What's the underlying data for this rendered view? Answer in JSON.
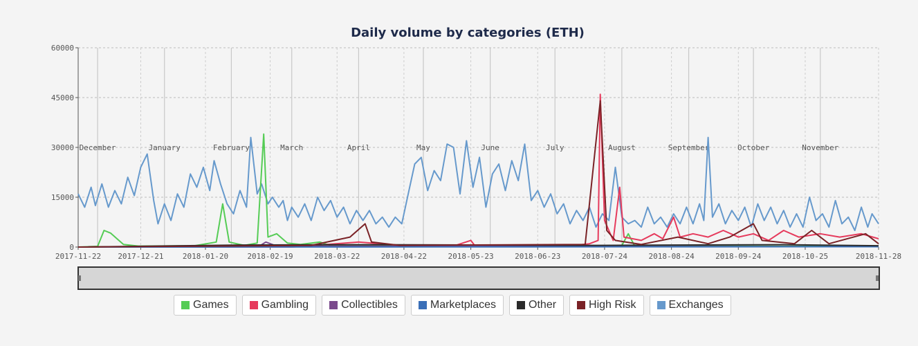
{
  "chart_data": {
    "type": "line",
    "title": "Daily volume by categories (ETH)",
    "xlabel": "",
    "ylabel": "",
    "ylim": [
      0,
      60000
    ],
    "y_ticks": [
      "0",
      "15000",
      "30000",
      "45000",
      "60000"
    ],
    "x_ticks": [
      "2017-11-22",
      "2017-12-21",
      "2018-01-20",
      "2018-02-19",
      "2018-03-22",
      "2018-04-22",
      "2018-05-23",
      "2018-06-23",
      "2018-07-24",
      "2018-08-24",
      "2018-09-24",
      "2018-10-25",
      "2018-11-28"
    ],
    "month_labels": [
      "December",
      "January",
      "February",
      "March",
      "April",
      "May",
      "June",
      "July",
      "August",
      "September",
      "October",
      "November"
    ],
    "grid": true,
    "legend_position": "bottom",
    "x_start": "2017-11-22",
    "x_end": "2018-11-28",
    "series": [
      {
        "name": "Exchanges",
        "color": "#6699cc",
        "points": [
          [
            "2017-11-22",
            16000
          ],
          [
            "2017-11-25",
            12000
          ],
          [
            "2017-11-28",
            18000
          ],
          [
            "2017-11-30",
            12500
          ],
          [
            "2017-12-03",
            19000
          ],
          [
            "2017-12-06",
            12000
          ],
          [
            "2017-12-09",
            17000
          ],
          [
            "2017-12-12",
            13000
          ],
          [
            "2017-12-15",
            21000
          ],
          [
            "2017-12-18",
            15500
          ],
          [
            "2017-12-21",
            24000
          ],
          [
            "2017-12-24",
            28000
          ],
          [
            "2017-12-27",
            14000
          ],
          [
            "2017-12-29",
            7000
          ],
          [
            "2018-01-01",
            13000
          ],
          [
            "2018-01-04",
            8000
          ],
          [
            "2018-01-07",
            16000
          ],
          [
            "2018-01-10",
            12000
          ],
          [
            "2018-01-13",
            22000
          ],
          [
            "2018-01-16",
            18000
          ],
          [
            "2018-01-19",
            24000
          ],
          [
            "2018-01-22",
            17000
          ],
          [
            "2018-01-24",
            26000
          ],
          [
            "2018-01-27",
            19000
          ],
          [
            "2018-01-30",
            13000
          ],
          [
            "2018-02-02",
            10000
          ],
          [
            "2018-02-05",
            17000
          ],
          [
            "2018-02-08",
            12000
          ],
          [
            "2018-02-10",
            33000
          ],
          [
            "2018-02-13",
            16000
          ],
          [
            "2018-02-15",
            19000
          ],
          [
            "2018-02-18",
            13000
          ],
          [
            "2018-02-20",
            15000
          ],
          [
            "2018-02-23",
            12000
          ],
          [
            "2018-02-25",
            14000
          ],
          [
            "2018-02-27",
            8000
          ],
          [
            "2018-03-01",
            12000
          ],
          [
            "2018-03-04",
            9000
          ],
          [
            "2018-03-07",
            13000
          ],
          [
            "2018-03-10",
            8000
          ],
          [
            "2018-03-13",
            15000
          ],
          [
            "2018-03-16",
            11000
          ],
          [
            "2018-03-19",
            14000
          ],
          [
            "2018-03-22",
            9000
          ],
          [
            "2018-03-25",
            12000
          ],
          [
            "2018-03-28",
            7000
          ],
          [
            "2018-03-31",
            11000
          ],
          [
            "2018-04-03",
            8000
          ],
          [
            "2018-04-06",
            11000
          ],
          [
            "2018-04-09",
            7000
          ],
          [
            "2018-04-12",
            9000
          ],
          [
            "2018-04-15",
            6000
          ],
          [
            "2018-04-18",
            9000
          ],
          [
            "2018-04-21",
            7000
          ],
          [
            "2018-04-24",
            16000
          ],
          [
            "2018-04-27",
            25000
          ],
          [
            "2018-04-30",
            27000
          ],
          [
            "2018-05-03",
            17000
          ],
          [
            "2018-05-06",
            23000
          ],
          [
            "2018-05-09",
            20000
          ],
          [
            "2018-05-12",
            31000
          ],
          [
            "2018-05-15",
            30000
          ],
          [
            "2018-05-18",
            16000
          ],
          [
            "2018-05-21",
            32000
          ],
          [
            "2018-05-24",
            18000
          ],
          [
            "2018-05-27",
            27000
          ],
          [
            "2018-05-30",
            12000
          ],
          [
            "2018-06-02",
            22000
          ],
          [
            "2018-06-05",
            25000
          ],
          [
            "2018-06-08",
            17000
          ],
          [
            "2018-06-11",
            26000
          ],
          [
            "2018-06-14",
            20000
          ],
          [
            "2018-06-17",
            31000
          ],
          [
            "2018-06-20",
            14000
          ],
          [
            "2018-06-23",
            17000
          ],
          [
            "2018-06-26",
            12000
          ],
          [
            "2018-06-29",
            16000
          ],
          [
            "2018-07-02",
            10000
          ],
          [
            "2018-07-05",
            13000
          ],
          [
            "2018-07-08",
            7000
          ],
          [
            "2018-07-11",
            11000
          ],
          [
            "2018-07-14",
            8000
          ],
          [
            "2018-07-17",
            12000
          ],
          [
            "2018-07-20",
            6000
          ],
          [
            "2018-07-23",
            10000
          ],
          [
            "2018-07-26",
            8000
          ],
          [
            "2018-07-29",
            24000
          ],
          [
            "2018-08-01",
            9000
          ],
          [
            "2018-08-04",
            7000
          ],
          [
            "2018-08-07",
            8000
          ],
          [
            "2018-08-10",
            6000
          ],
          [
            "2018-08-13",
            12000
          ],
          [
            "2018-08-16",
            7000
          ],
          [
            "2018-08-19",
            9000
          ],
          [
            "2018-08-22",
            6000
          ],
          [
            "2018-08-25",
            10000
          ],
          [
            "2018-08-28",
            7000
          ],
          [
            "2018-08-31",
            12000
          ],
          [
            "2018-09-03",
            7000
          ],
          [
            "2018-09-06",
            13000
          ],
          [
            "2018-09-08",
            8000
          ],
          [
            "2018-09-10",
            33000
          ],
          [
            "2018-09-12",
            9000
          ],
          [
            "2018-09-15",
            13000
          ],
          [
            "2018-09-18",
            7000
          ],
          [
            "2018-09-21",
            11000
          ],
          [
            "2018-09-24",
            8000
          ],
          [
            "2018-09-27",
            12000
          ],
          [
            "2018-09-30",
            6000
          ],
          [
            "2018-10-03",
            13000
          ],
          [
            "2018-10-06",
            8000
          ],
          [
            "2018-10-09",
            12000
          ],
          [
            "2018-10-12",
            7000
          ],
          [
            "2018-10-15",
            11000
          ],
          [
            "2018-10-18",
            6000
          ],
          [
            "2018-10-21",
            10000
          ],
          [
            "2018-10-24",
            6000
          ],
          [
            "2018-10-27",
            15000
          ],
          [
            "2018-10-30",
            8000
          ],
          [
            "2018-11-02",
            10000
          ],
          [
            "2018-11-05",
            6000
          ],
          [
            "2018-11-08",
            14000
          ],
          [
            "2018-11-11",
            7000
          ],
          [
            "2018-11-14",
            9000
          ],
          [
            "2018-11-17",
            5000
          ],
          [
            "2018-11-20",
            12000
          ],
          [
            "2018-11-23",
            6000
          ],
          [
            "2018-11-25",
            10000
          ],
          [
            "2018-11-28",
            7000
          ]
        ]
      },
      {
        "name": "Games",
        "color": "#55cc55",
        "points": [
          [
            "2017-11-22",
            0
          ],
          [
            "2017-12-01",
            200
          ],
          [
            "2017-12-04",
            5000
          ],
          [
            "2017-12-07",
            4200
          ],
          [
            "2017-12-10",
            2500
          ],
          [
            "2017-12-13",
            800
          ],
          [
            "2017-12-20",
            300
          ],
          [
            "2018-01-15",
            400
          ],
          [
            "2018-01-25",
            1500
          ],
          [
            "2018-01-28",
            13000
          ],
          [
            "2018-01-31",
            1500
          ],
          [
            "2018-02-07",
            500
          ],
          [
            "2018-02-13",
            1200
          ],
          [
            "2018-02-16",
            34000
          ],
          [
            "2018-02-18",
            3000
          ],
          [
            "2018-02-22",
            4000
          ],
          [
            "2018-02-27",
            1200
          ],
          [
            "2018-03-05",
            800
          ],
          [
            "2018-03-14",
            1500
          ],
          [
            "2018-03-20",
            300
          ],
          [
            "2018-05-01",
            300
          ],
          [
            "2018-07-20",
            200
          ],
          [
            "2018-08-01",
            500
          ],
          [
            "2018-08-04",
            4000
          ],
          [
            "2018-08-07",
            300
          ],
          [
            "2018-09-20",
            300
          ],
          [
            "2018-10-20",
            200
          ],
          [
            "2018-11-28",
            200
          ]
        ]
      },
      {
        "name": "Gambling",
        "color": "#e63a5c",
        "points": [
          [
            "2017-11-22",
            0
          ],
          [
            "2018-03-01",
            0
          ],
          [
            "2018-04-01",
            1500
          ],
          [
            "2018-04-20",
            500
          ],
          [
            "2018-05-15",
            300
          ],
          [
            "2018-05-23",
            2000
          ],
          [
            "2018-05-25",
            300
          ],
          [
            "2018-06-20",
            400
          ],
          [
            "2018-07-10",
            500
          ],
          [
            "2018-07-17",
            1000
          ],
          [
            "2018-07-21",
            2000
          ],
          [
            "2018-07-22",
            46000
          ],
          [
            "2018-07-24",
            8000
          ],
          [
            "2018-07-28",
            2000
          ],
          [
            "2018-07-31",
            18000
          ],
          [
            "2018-08-02",
            3000
          ],
          [
            "2018-08-10",
            2000
          ],
          [
            "2018-08-16",
            4000
          ],
          [
            "2018-08-20",
            2500
          ],
          [
            "2018-08-25",
            9000
          ],
          [
            "2018-08-28",
            3000
          ],
          [
            "2018-09-03",
            4000
          ],
          [
            "2018-09-10",
            3000
          ],
          [
            "2018-09-17",
            5000
          ],
          [
            "2018-09-24",
            3000
          ],
          [
            "2018-10-01",
            4000
          ],
          [
            "2018-10-08",
            2000
          ],
          [
            "2018-10-15",
            5000
          ],
          [
            "2018-10-22",
            3000
          ],
          [
            "2018-11-01",
            4000
          ],
          [
            "2018-11-10",
            3000
          ],
          [
            "2018-11-20",
            4000
          ],
          [
            "2018-11-28",
            2500
          ]
        ]
      },
      {
        "name": "Collectibles",
        "color": "#7a4a8c",
        "points": [
          [
            "2017-11-22",
            0
          ],
          [
            "2018-02-14",
            300
          ],
          [
            "2018-02-17",
            1500
          ],
          [
            "2018-02-22",
            300
          ],
          [
            "2018-11-28",
            100
          ]
        ]
      },
      {
        "name": "Marketplaces",
        "color": "#3a6fb8",
        "points": [
          [
            "2017-11-22",
            0
          ],
          [
            "2018-11-28",
            100
          ]
        ]
      },
      {
        "name": "Other",
        "color": "#2b2b2b",
        "points": [
          [
            "2017-11-22",
            0
          ],
          [
            "2018-02-05",
            600
          ],
          [
            "2018-04-08",
            700
          ],
          [
            "2018-07-20",
            500
          ],
          [
            "2018-08-25",
            600
          ],
          [
            "2018-10-15",
            700
          ],
          [
            "2018-11-28",
            400
          ]
        ]
      },
      {
        "name": "High Risk",
        "color": "#7a2226",
        "points": [
          [
            "2017-11-22",
            0
          ],
          [
            "2018-03-10",
            500
          ],
          [
            "2018-03-28",
            3000
          ],
          [
            "2018-04-04",
            7000
          ],
          [
            "2018-04-07",
            1500
          ],
          [
            "2018-04-20",
            500
          ],
          [
            "2018-07-15",
            800
          ],
          [
            "2018-07-22",
            44000
          ],
          [
            "2018-07-25",
            5000
          ],
          [
            "2018-07-29",
            2000
          ],
          [
            "2018-08-10",
            800
          ],
          [
            "2018-08-27",
            3000
          ],
          [
            "2018-09-10",
            1000
          ],
          [
            "2018-09-20",
            3000
          ],
          [
            "2018-10-01",
            7000
          ],
          [
            "2018-10-05",
            2000
          ],
          [
            "2018-10-20",
            1000
          ],
          [
            "2018-10-28",
            5000
          ],
          [
            "2018-11-05",
            1000
          ],
          [
            "2018-11-22",
            4000
          ],
          [
            "2018-11-28",
            1000
          ]
        ]
      }
    ]
  },
  "legend": [
    {
      "label": "Games",
      "color": "#55cc55"
    },
    {
      "label": "Gambling",
      "color": "#e63a5c"
    },
    {
      "label": "Collectibles",
      "color": "#7a4a8c"
    },
    {
      "label": "Marketplaces",
      "color": "#3a6fb8"
    },
    {
      "label": "Other",
      "color": "#2b2b2b"
    },
    {
      "label": "High Risk",
      "color": "#7a2226"
    },
    {
      "label": "Exchanges",
      "color": "#6699cc"
    }
  ]
}
